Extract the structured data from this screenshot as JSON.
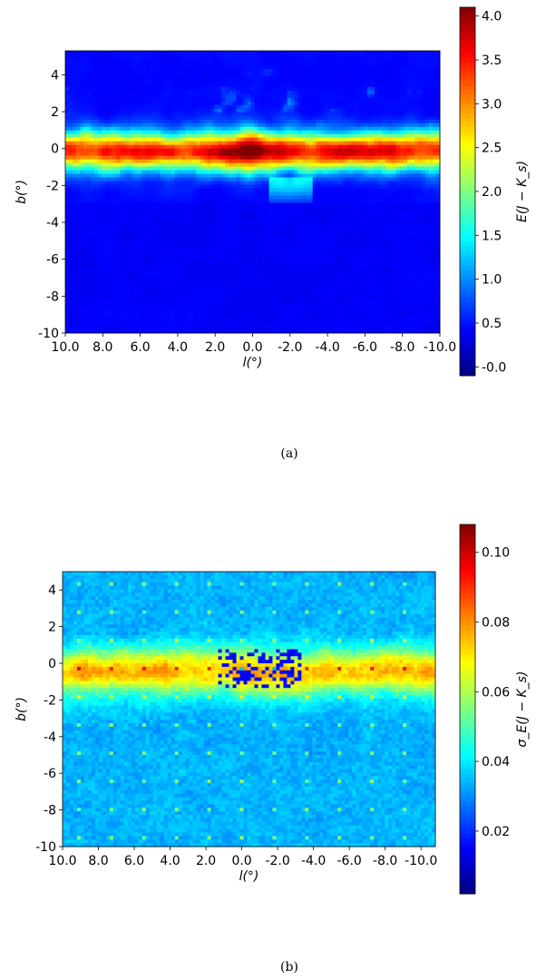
{
  "chart_data": [
    {
      "type": "heatmap",
      "panel_caption": "(a)",
      "xlabel": "l(°)",
      "ylabel": "b(°)",
      "xlim": [
        10,
        -10
      ],
      "ylim": [
        -10,
        5.3
      ],
      "x_ticks": [
        "10.0",
        "8.0",
        "6.0",
        "4.0",
        "2.0",
        "0.0",
        "-2.0",
        "-4.0",
        "-6.0",
        "-8.0",
        "-10.0"
      ],
      "y_ticks": [
        "-10",
        "-8",
        "-6",
        "-4",
        "-2",
        "0",
        "2",
        "4"
      ],
      "colorbar": {
        "label": "E(J − K_s)",
        "colormap": "jet",
        "range": [
          -0.1,
          4.1
        ],
        "ticks": [
          "-0.0",
          "0.5",
          "1.0",
          "1.5",
          "2.0",
          "2.5",
          "3.0",
          "3.5",
          "4.0"
        ]
      },
      "field_description": "Extinction concentrated along Galactic plane (b≈0), peaking ~3.8-4.0 near l≈0 and l≈-7; background ~0.2-0.6"
    },
    {
      "type": "heatmap",
      "panel_caption": "(b)",
      "xlabel": "l(°)",
      "ylabel": "b(°)",
      "xlim": [
        10,
        -10.8
      ],
      "ylim": [
        -10,
        5
      ],
      "x_ticks": [
        "10.0",
        "8.0",
        "6.0",
        "4.0",
        "2.0",
        "0.0",
        "-2.0",
        "-4.0",
        "-6.0",
        "-8.0",
        "-10.0"
      ],
      "y_ticks": [
        "-10",
        "-8",
        "-6",
        "-4",
        "-2",
        "0",
        "2",
        "4"
      ],
      "colorbar": {
        "label": "σ_E(J − K_s)",
        "colormap": "jet",
        "range": [
          0.002,
          0.108
        ],
        "ticks": [
          "0.02",
          "0.04",
          "0.06",
          "0.08",
          "0.10"
        ]
      },
      "field_description": "Uncertainty ~0.06-0.08 along plane, dips to ~0.01 near l≈0..-3, background ~0.025-0.035"
    }
  ]
}
